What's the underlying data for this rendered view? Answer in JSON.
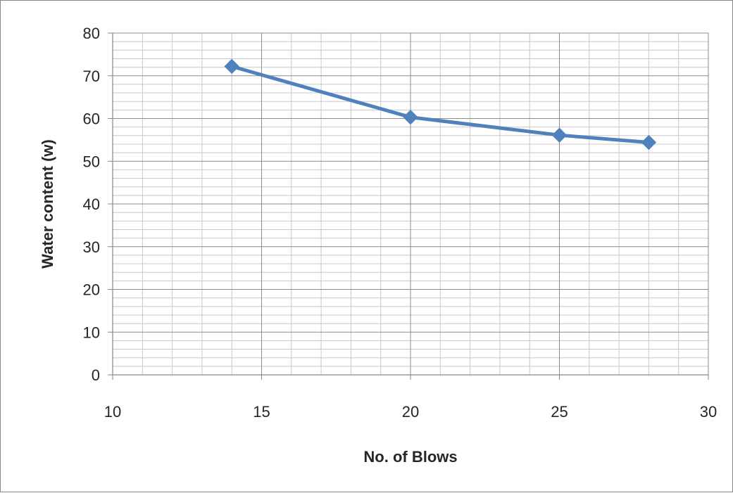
{
  "chart_data": {
    "type": "line",
    "title": "",
    "xlabel": "No. of Blows",
    "ylabel": "Water content (w)",
    "xlim": [
      10,
      30
    ],
    "ylim": [
      0,
      80
    ],
    "x_ticks": [
      "10",
      "15",
      "20",
      "25",
      "30"
    ],
    "y_ticks": [
      "0",
      "10",
      "20",
      "30",
      "40",
      "50",
      "60",
      "70",
      "80"
    ],
    "grid": true,
    "legend": "none",
    "series": [
      {
        "color": "#4f81bd",
        "marker": "diamond",
        "points": [
          {
            "x": 14,
            "y": 72.2
          },
          {
            "x": 20,
            "y": 60.3
          },
          {
            "x": 25,
            "y": 56.1
          },
          {
            "x": 28,
            "y": 54.4
          }
        ]
      }
    ]
  }
}
